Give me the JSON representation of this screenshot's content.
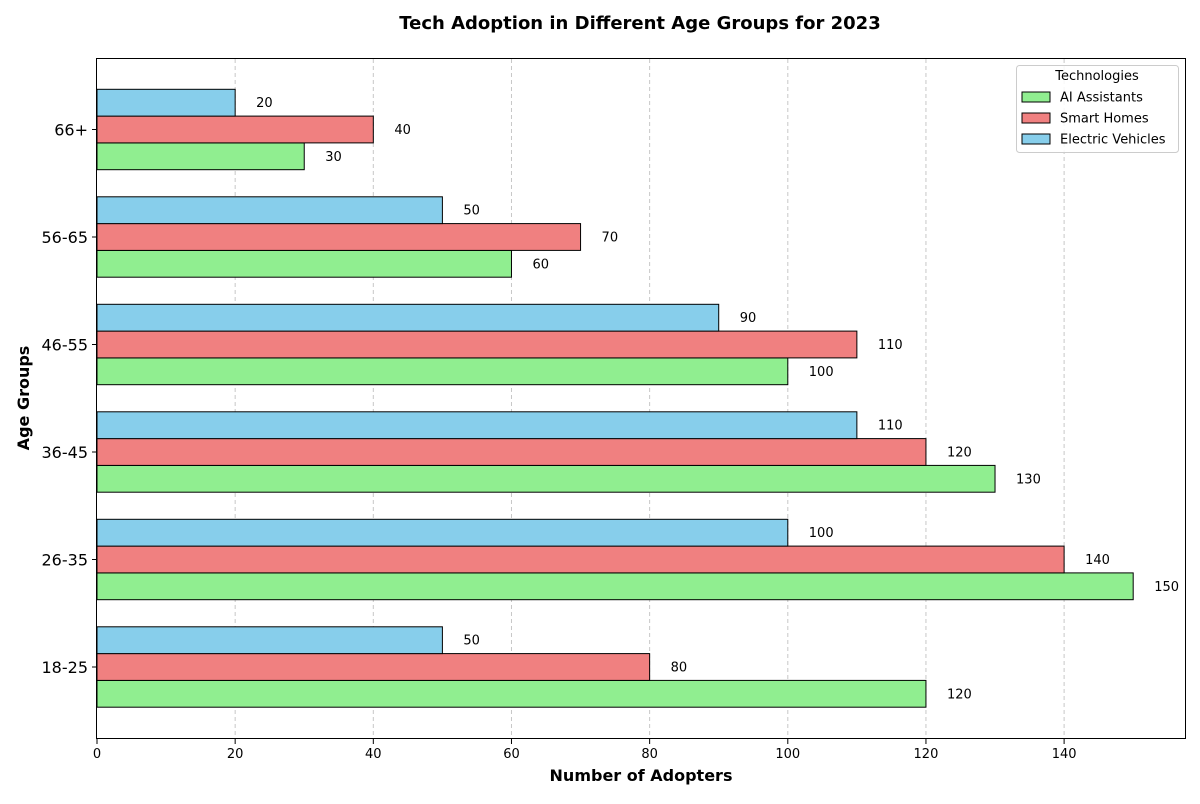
{
  "chart_data": {
    "type": "bar",
    "orientation": "horizontal",
    "title": "Tech Adoption in Different Age Groups for 2023",
    "xlabel": "Number of Adopters",
    "ylabel": "Age Groups",
    "categories": [
      "18-25",
      "26-35",
      "36-45",
      "46-55",
      "56-65",
      "66+"
    ],
    "series": [
      {
        "name": "AI Assistants",
        "color": "#90ee90",
        "values": [
          120,
          150,
          130,
          100,
          60,
          30
        ]
      },
      {
        "name": "Smart Homes",
        "color": "#f08080",
        "values": [
          80,
          140,
          120,
          110,
          70,
          40
        ]
      },
      {
        "name": "Electric Vehicles",
        "color": "#87ceeb",
        "values": [
          50,
          100,
          110,
          90,
          50,
          20
        ]
      }
    ],
    "xlim": [
      0,
      157.5
    ],
    "xticks": [
      0,
      20,
      40,
      60,
      80,
      100,
      120,
      140
    ],
    "grid": "x-dashed",
    "legend": {
      "title": "Technologies",
      "placement": "top-right"
    },
    "data_labels": true
  }
}
